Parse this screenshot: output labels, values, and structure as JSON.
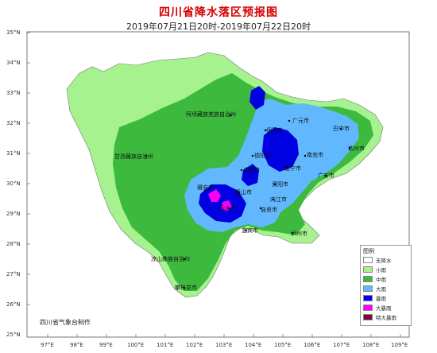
{
  "header": {
    "title": "四川省降水落区预报图",
    "time_range": "2019年07月21日20时-2019年07月22日20时"
  },
  "axes": {
    "lat_labels": [
      "35°N",
      "34°N",
      "33°N",
      "32°N",
      "31°N",
      "30°N",
      "29°N",
      "28°N",
      "27°N",
      "26°N",
      "25°N"
    ],
    "lon_labels": [
      "97°E",
      "98°E",
      "99°E",
      "100°E",
      "101°E",
      "102°E",
      "103°E",
      "104°E",
      "105°E",
      "106°E",
      "107°E",
      "108°E",
      "109°E"
    ]
  },
  "cities": [
    {
      "name": "广元市"
    },
    {
      "name": "巴中市"
    },
    {
      "name": "绵阳市"
    },
    {
      "name": "阿坝藏族羌族自治州"
    },
    {
      "name": "达州市"
    },
    {
      "name": "德阳市"
    },
    {
      "name": "南充市"
    },
    {
      "name": "甘孜藏族自治州"
    },
    {
      "name": "成都市"
    },
    {
      "name": "遂宁市"
    },
    {
      "name": "广安市"
    },
    {
      "name": "雅安市"
    },
    {
      "name": "资阳市"
    },
    {
      "name": "眉山市"
    },
    {
      "name": "内江市"
    },
    {
      "name": "乐山市"
    },
    {
      "name": "自贡市"
    },
    {
      "name": "宜宾市"
    },
    {
      "name": "泸州市"
    },
    {
      "name": "凉山彝族自治州"
    },
    {
      "name": "攀枝花市"
    }
  ],
  "credit": "四川省气象台制作",
  "legend": {
    "title": "图例",
    "items": [
      {
        "label": "无降水",
        "color": "#ffffff"
      },
      {
        "label": "小雨",
        "color": "#a6f28f"
      },
      {
        "label": "中雨",
        "color": "#3dba3d"
      },
      {
        "label": "大雨",
        "color": "#61b8ff"
      },
      {
        "label": "暴雨",
        "color": "#0000e1"
      },
      {
        "label": "大暴雨",
        "color": "#fa00fa"
      },
      {
        "label": "特大暴雨",
        "color": "#800040"
      }
    ]
  }
}
